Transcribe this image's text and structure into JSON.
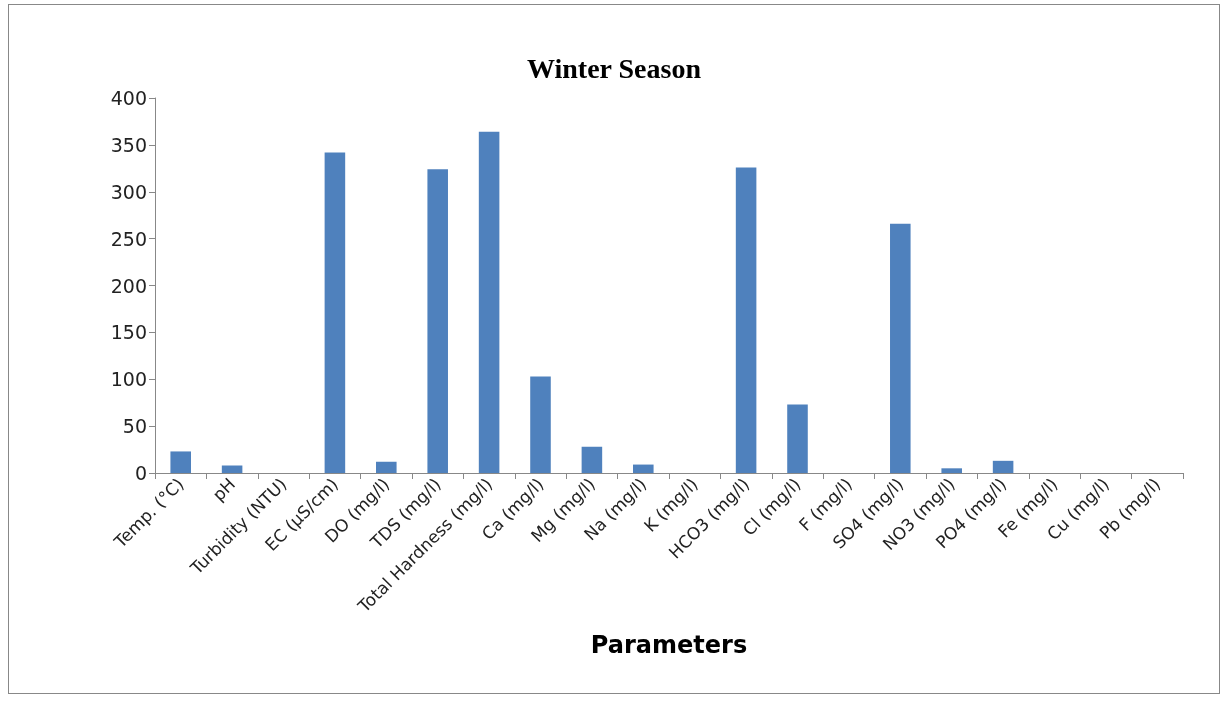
{
  "chart_data": {
    "type": "bar",
    "title": "Winter Season",
    "xlabel": "Parameters",
    "categories": [
      "Temp. (°C)",
      "pH",
      "Turbidity (NTU)",
      "EC (µS/cm)",
      "DO (mg/l)",
      "TDS (mg/l)",
      "Total Hardness (mg/l)",
      "Ca (mg/l)",
      "Mg (mg/l)",
      "Na (mg/l)",
      "K (mg/l)",
      "HCO3 (mg/l)",
      "Cl (mg/l)",
      "F (mg/l)",
      "SO4 (mg/l)",
      "NO3 (mg/l)",
      "PO4 (mg/l)",
      "Fe (mg/l)",
      "Cu (mg/l)",
      "Pb (mg/l)"
    ],
    "values": [
      23,
      8,
      0,
      342,
      12,
      324,
      364,
      103,
      28,
      9,
      0,
      326,
      73,
      0,
      266,
      5,
      13,
      0,
      0,
      0
    ],
    "color": "#4f81bd",
    "ylim": [
      0,
      400
    ],
    "yticks": [
      0,
      50,
      100,
      150,
      200,
      250,
      300,
      350,
      400
    ]
  }
}
